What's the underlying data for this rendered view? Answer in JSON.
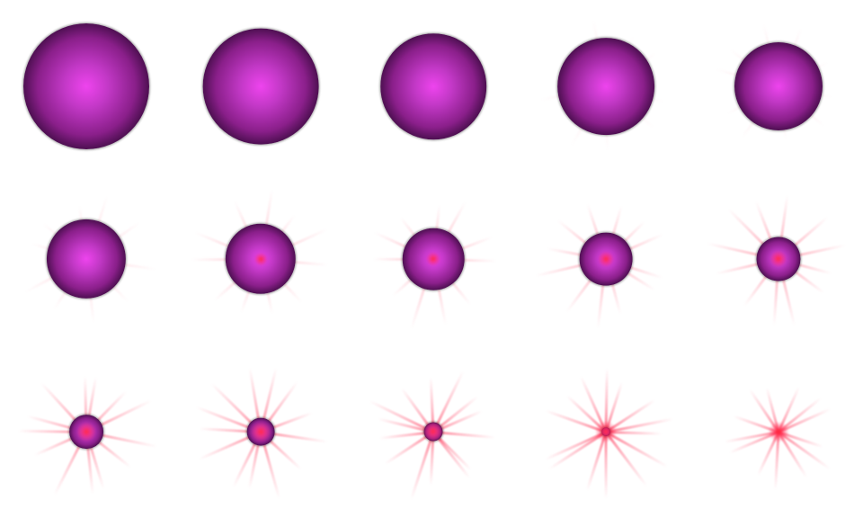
{
  "sprite_sheet": {
    "background": "#ffffff",
    "colors": {
      "core": "#ee44ee",
      "mid": "#8a1f8a",
      "edge": "#000000",
      "ray": "#ff3355",
      "flare": "#ff2844"
    },
    "frames": [
      {
        "orb_scale": 1.0,
        "ray_intensity": 0.0
      },
      {
        "orb_scale": 0.92,
        "ray_intensity": 0.0
      },
      {
        "orb_scale": 0.84,
        "ray_intensity": 0.0
      },
      {
        "orb_scale": 0.77,
        "ray_intensity": 0.05
      },
      {
        "orb_scale": 0.7,
        "ray_intensity": 0.1
      },
      {
        "orb_scale": 0.63,
        "ray_intensity": 0.2
      },
      {
        "orb_scale": 0.56,
        "ray_intensity": 0.35
      },
      {
        "orb_scale": 0.49,
        "ray_intensity": 0.45
      },
      {
        "orb_scale": 0.42,
        "ray_intensity": 0.55
      },
      {
        "orb_scale": 0.35,
        "ray_intensity": 0.65
      },
      {
        "orb_scale": 0.27,
        "ray_intensity": 0.8
      },
      {
        "orb_scale": 0.22,
        "ray_intensity": 0.85
      },
      {
        "orb_scale": 0.15,
        "ray_intensity": 0.9
      },
      {
        "orb_scale": 0.07,
        "ray_intensity": 0.95
      },
      {
        "orb_scale": 0.0,
        "ray_intensity": 0.85
      }
    ]
  }
}
